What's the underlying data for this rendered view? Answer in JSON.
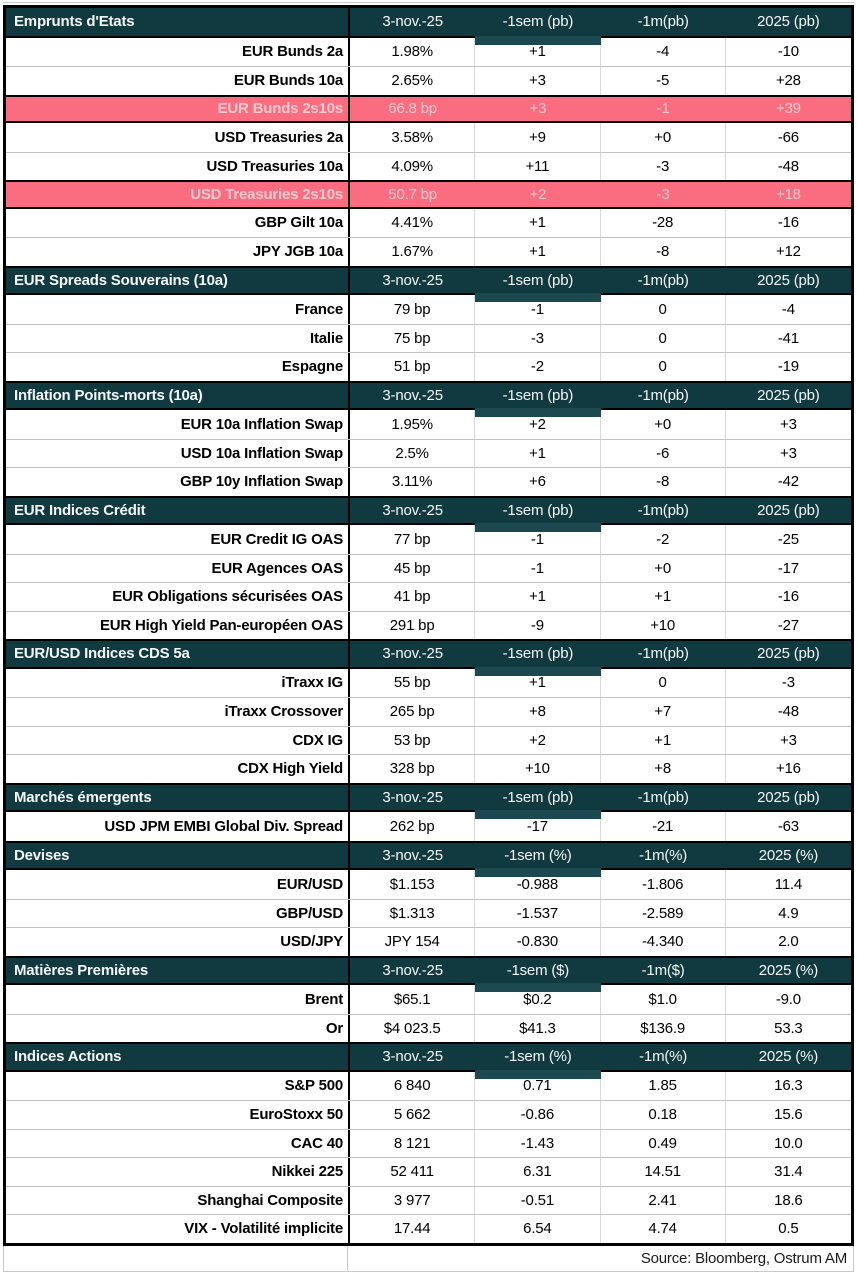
{
  "chart_data": [
    {
      "type": "table",
      "title": "Emprunts d'Etats",
      "columns": [
        "3-nov.-25",
        "-1sem (pb)",
        "-1m(pb)",
        "2025 (pb)"
      ],
      "rows": [
        {
          "label": "EUR Bunds 2a",
          "values": [
            "1.98%",
            "+1",
            "-4",
            "-10"
          ],
          "highlight": false
        },
        {
          "label": "EUR Bunds 10a",
          "values": [
            "2.65%",
            "+3",
            "-5",
            "+28"
          ],
          "highlight": false
        },
        {
          "label": "EUR Bunds 2s10s",
          "values": [
            "66.8 bp",
            "+3",
            "-1",
            "+39"
          ],
          "highlight": true
        },
        {
          "label": "USD Treasuries 2a",
          "values": [
            "3.58%",
            "+9",
            "+0",
            "-66"
          ],
          "highlight": false
        },
        {
          "label": "USD Treasuries 10a",
          "values": [
            "4.09%",
            "+11",
            "-3",
            "-48"
          ],
          "highlight": false
        },
        {
          "label": "USD Treasuries 2s10s",
          "values": [
            "50.7 bp",
            "+2",
            "-3",
            "+18"
          ],
          "highlight": true
        },
        {
          "label": "GBP Gilt 10a",
          "values": [
            "4.41%",
            "+1",
            "-28",
            "-16"
          ],
          "highlight": false
        },
        {
          "label": "JPY JGB 10a",
          "values": [
            "1.67%",
            "+1",
            "-8",
            "+12"
          ],
          "highlight": false
        }
      ]
    },
    {
      "type": "table",
      "title": "EUR Spreads Souverains (10a)",
      "columns": [
        "3-nov.-25",
        "-1sem (pb)",
        "-1m(pb)",
        "2025 (pb)"
      ],
      "rows": [
        {
          "label": "France",
          "values": [
            "79 bp",
            "-1",
            "0",
            "-4"
          ],
          "highlight": false
        },
        {
          "label": "Italie",
          "values": [
            "75 bp",
            "-3",
            "0",
            "-41"
          ],
          "highlight": false
        },
        {
          "label": "Espagne",
          "values": [
            "51 bp",
            "-2",
            "0",
            "-19"
          ],
          "highlight": false
        }
      ]
    },
    {
      "type": "table",
      "title": "Inflation Points-morts (10a)",
      "columns": [
        "3-nov.-25",
        "-1sem (pb)",
        "-1m(pb)",
        "2025 (pb)"
      ],
      "rows": [
        {
          "label": "EUR 10a Inflation Swap",
          "values": [
            "1.95%",
            "+2",
            "+0",
            "+3"
          ],
          "highlight": false
        },
        {
          "label": "USD 10a Inflation Swap",
          "values": [
            "2.5%",
            "+1",
            "-6",
            "+3"
          ],
          "highlight": false
        },
        {
          "label": "GBP 10y Inflation Swap",
          "values": [
            "3.11%",
            "+6",
            "-8",
            "-42"
          ],
          "highlight": false
        }
      ]
    },
    {
      "type": "table",
      "title": "EUR Indices Crédit",
      "columns": [
        "3-nov.-25",
        "-1sem (pb)",
        "-1m(pb)",
        "2025 (pb)"
      ],
      "rows": [
        {
          "label": "EUR Credit IG OAS",
          "values": [
            "77 bp",
            "-1",
            "-2",
            "-25"
          ],
          "highlight": false
        },
        {
          "label": "EUR Agences OAS",
          "values": [
            "45 bp",
            "-1",
            "+0",
            "-17"
          ],
          "highlight": false
        },
        {
          "label": "EUR Obligations sécurisées OAS",
          "values": [
            "41 bp",
            "+1",
            "+1",
            "-16"
          ],
          "highlight": false
        },
        {
          "label": "EUR High Yield Pan-européen OAS",
          "values": [
            "291 bp",
            "-9",
            "+10",
            "-27"
          ],
          "highlight": false
        }
      ]
    },
    {
      "type": "table",
      "title": "EUR/USD Indices CDS 5a",
      "columns": [
        "3-nov.-25",
        "-1sem (pb)",
        "-1m(pb)",
        "2025 (pb)"
      ],
      "rows": [
        {
          "label": "iTraxx IG",
          "values": [
            "55 bp",
            "+1",
            "0",
            "-3"
          ],
          "highlight": false
        },
        {
          "label": "iTraxx Crossover",
          "values": [
            "265 bp",
            "+8",
            "+7",
            "-48"
          ],
          "highlight": false
        },
        {
          "label": "CDX IG",
          "values": [
            "53 bp",
            "+2",
            "+1",
            "+3"
          ],
          "highlight": false
        },
        {
          "label": "CDX High Yield",
          "values": [
            "328 bp",
            "+10",
            "+8",
            "+16"
          ],
          "highlight": false
        }
      ]
    },
    {
      "type": "table",
      "title": "Marchés émergents",
      "columns": [
        "3-nov.-25",
        "-1sem (pb)",
        "-1m(pb)",
        "2025 (pb)"
      ],
      "rows": [
        {
          "label": "USD JPM EMBI Global Div. Spread",
          "values": [
            "262 bp",
            "-17",
            "-21",
            "-63"
          ],
          "highlight": false
        }
      ]
    },
    {
      "type": "table",
      "title": "Devises",
      "columns": [
        "3-nov.-25",
        "-1sem (%)",
        "-1m(%)",
        "2025 (%)"
      ],
      "rows": [
        {
          "label": "EUR/USD",
          "values": [
            "$1.153",
            "-0.988",
            "-1.806",
            "11.4"
          ],
          "highlight": false
        },
        {
          "label": "GBP/USD",
          "values": [
            "$1.313",
            "-1.537",
            "-2.589",
            "4.9"
          ],
          "highlight": false
        },
        {
          "label": "USD/JPY",
          "values": [
            "JPY 154",
            "-0.830",
            "-4.340",
            "2.0"
          ],
          "highlight": false
        }
      ]
    },
    {
      "type": "table",
      "title": "Matières Premières",
      "columns": [
        "3-nov.-25",
        "-1sem ($)",
        "-1m($)",
        "2025 (%)"
      ],
      "rows": [
        {
          "label": "Brent",
          "values": [
            "$65.1",
            "$0.2",
            "$1.0",
            "-9.0"
          ],
          "highlight": false
        },
        {
          "label": "Or",
          "values": [
            "$4 023.5",
            "$41.3",
            "$136.9",
            "53.3"
          ],
          "highlight": false
        }
      ]
    },
    {
      "type": "table",
      "title": "Indices Actions",
      "columns": [
        "3-nov.-25",
        "-1sem (%)",
        "-1m(%)",
        "2025 (%)"
      ],
      "rows": [
        {
          "label": "S&P 500",
          "values": [
            "6 840",
            "0.71",
            "1.85",
            "16.3"
          ],
          "highlight": false
        },
        {
          "label": "EuroStoxx 50",
          "values": [
            "5 662",
            "-0.86",
            "0.18",
            "15.6"
          ],
          "highlight": false
        },
        {
          "label": "CAC 40",
          "values": [
            "8 121",
            "-1.43",
            "0.49",
            "10.0"
          ],
          "highlight": false
        },
        {
          "label": "Nikkei 225",
          "values": [
            "52 411",
            "6.31",
            "14.51",
            "31.4"
          ],
          "highlight": false
        },
        {
          "label": "Shanghai Composite",
          "values": [
            "3 977",
            "-0.51",
            "2.41",
            "18.6"
          ],
          "highlight": false
        },
        {
          "label": "VIX - Volatilité implicite",
          "values": [
            "17.44",
            "6.54",
            "4.74",
            "0.5"
          ],
          "highlight": false
        }
      ]
    }
  ],
  "footer": {
    "source": "Source: Bloomberg, Ostrum AM"
  },
  "colors": {
    "section_header_bg": "#113a40",
    "section_header_text": "#f4f7f7",
    "highlight_row_bg": "#fa6d80",
    "highlight_row_text": "#f6cbd0",
    "grid_line": "#c4c4c4",
    "column_divider": "#d9d9d9",
    "table_border": "#000000"
  }
}
